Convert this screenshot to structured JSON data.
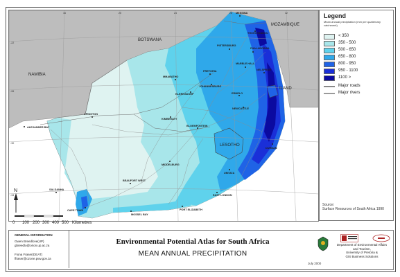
{
  "map": {
    "countries": {
      "botswana": "BOTSWANA",
      "namibia": "NAMIBIA",
      "mozambique": "MOZAMBIQUE",
      "lesotho": "LESOTHO",
      "swaziland": "ILAND"
    },
    "places": {
      "messina": "MESSINA",
      "thohoyandou": "THOHOYANDOU",
      "pietersburg": "PIETERSBURG",
      "phalaborwa": "PHALABORWA",
      "marble_hall": "MARBLE HALL",
      "nelspruit": "NELSPRUIT",
      "mmabatho": "MMABATHO",
      "pretoria": "PRETORIA",
      "johannesburg": "JOHANNESBURG",
      "klerksdorp": "KLERKSDORP",
      "ermelo": "ERMELO",
      "newcastle": "NEWCASTLE",
      "upington": "UPINGTON",
      "kimberley": "KIMBERLEY",
      "bloemfontein": "BLOEMFONTEIN",
      "alexander_bay": "ALEXANDER BAY",
      "middelburg": "MIDDELBURG",
      "durban": "DURBAN",
      "umtata": "UMTATA",
      "beaufort_west": "BEAUFORT WEST",
      "saldanha": "SALDANHA",
      "cape_town": "CAPE TOWN",
      "mossel_bay": "MOSSEL BAY",
      "port_elizabeth": "PORT ELIZABETH",
      "east_london": "EAST LONDON"
    },
    "grid_labels": {
      "top": [
        "16",
        "20",
        "24",
        "28",
        "32"
      ],
      "left": [
        "-22",
        "-26",
        "-30",
        "-34"
      ]
    },
    "north_label": "N",
    "scale_ticks": [
      "0",
      "100",
      "200",
      "300",
      "400",
      "500"
    ],
    "scale_unit": "Kilometres"
  },
  "legend": {
    "title": "Legend",
    "subtitle": "Mean annual precipitation (mm per quaternary catchment)",
    "classes": [
      {
        "label": "< 350",
        "color": "#dff3f1"
      },
      {
        "label": "350 - 500",
        "color": "#a8e6ea"
      },
      {
        "label": "500 - 650",
        "color": "#5fd2ec"
      },
      {
        "label": "650 - 800",
        "color": "#2fa8ea"
      },
      {
        "label": "800 - 950",
        "color": "#1f63e6"
      },
      {
        "label": "950 - 1100",
        "color": "#1a2fd8"
      },
      {
        "label": "1100 >",
        "color": "#0b0aa0"
      }
    ],
    "lines": [
      {
        "label": "Major roads",
        "color": "#888888"
      },
      {
        "label": "Major rivers",
        "color": "#9a9a9a"
      }
    ]
  },
  "source": {
    "label": "Source:",
    "text": "Surface Resources of South Africa 1990"
  },
  "footer": {
    "general_info_title": "GENERAL INFORMATION",
    "contact1_name": "Gwen Breedlove(UP)",
    "contact1_email": "gbreedlo@orion.up.ac.za",
    "contact2_name": "Fiona Fraser(DEAT)",
    "contact2_email": "ffraser@ozone.pwv.gov.za",
    "main_title": "Environmental Potential Atlas for South Africa",
    "sub_title": "MEAN ANNUAL PRECIPITATION",
    "date": "July 2000",
    "dept_line1": "Department of Environmental Affairs",
    "dept_line2": "and Tourism,",
    "dept_line3": "University of Pretoria &",
    "dept_line4": "GIS Business Solutions"
  }
}
